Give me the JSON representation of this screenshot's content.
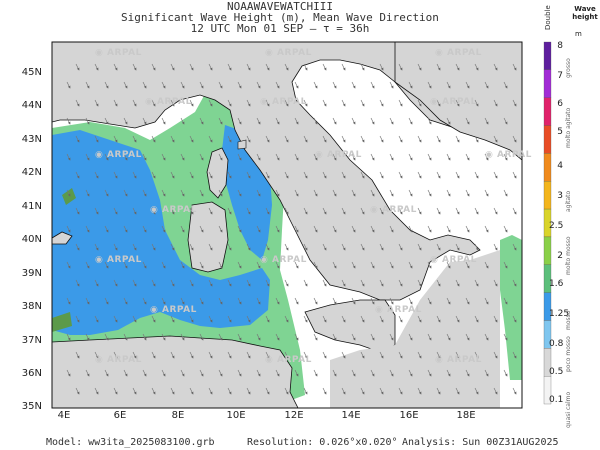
{
  "header": {
    "line1": "NOAAWAVEWATCHIII",
    "line2": "Significant Wave Height (m), Mean Wave Direction",
    "line3": "12 UTC Mon 01 SEP   —  τ = 36h"
  },
  "map": {
    "lat_labels": [
      "45N",
      "44N",
      "43N",
      "42N",
      "41N",
      "40N",
      "39N",
      "38N",
      "37N",
      "36N",
      "35N"
    ],
    "lon_labels": [
      "4E",
      "6E",
      "8E",
      "10E",
      "12E",
      "14E",
      "16E",
      "18E"
    ],
    "lat_range": [
      35,
      45.8
    ],
    "lon_range": [
      3.2,
      20.2
    ],
    "watermark": "ARPAL",
    "colors": {
      "land": "#d5d5d5",
      "sea_calm": "#ffffff",
      "green": "#7fd493",
      "blue": "#3b9ae8",
      "darkgreen": "#5c9a4a"
    }
  },
  "colorbar": {
    "header": "Wave height",
    "unit": "m",
    "top_label": "Double",
    "values": [
      "8",
      "7",
      "6",
      "5",
      "4",
      "3",
      "2.5",
      "2",
      "1.6",
      "1.25",
      "0.8",
      "0.5",
      "0.1"
    ],
    "categories": [
      "grosso",
      "molto agitato",
      "agitato",
      "molto mosso",
      "mosso",
      "poco mosso",
      "quasi calmo"
    ],
    "colors": [
      "#5e1e9e",
      "#a22bd6",
      "#e0226a",
      "#e84c25",
      "#f08a1c",
      "#f3b51c",
      "#d9d42a",
      "#8ad048",
      "#5cbf7b",
      "#3b9ae8",
      "#7fc6ef",
      "#d8d8d8",
      "#f3f3f3"
    ]
  },
  "footer": {
    "model": "Model:  ww3ita_2025083100.grb",
    "resolution": "Resolution: 0.026°x0.020°",
    "analysis": "Analysis: Sun 00Z31AUG2025"
  }
}
